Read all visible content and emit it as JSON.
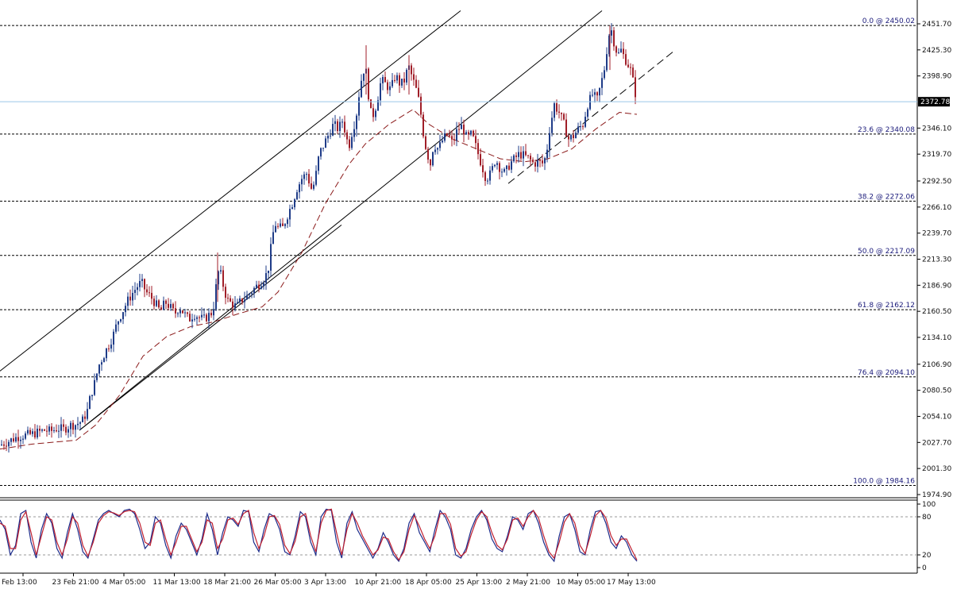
{
  "colors": {
    "background": "#ffffff",
    "bull_candle": "#1f3c88",
    "bear_candle": "#a01e28",
    "channel_line": "#000000",
    "fib_line": "#000000",
    "moving_average": "#8b1a1a",
    "current_price_line": "#9ac8e8",
    "stoch_main": "#1b2a8a",
    "stoch_signal": "#c02030",
    "axis": "#000000"
  },
  "chart_data": [
    {
      "type": "candlestick",
      "ylim": [
        1968.0,
        2458.0
      ],
      "y_ticks": [
        "2451.70",
        "2425.30",
        "2398.90",
        "2372.78",
        "2346.10",
        "2319.70",
        "2292.50",
        "2266.10",
        "2239.70",
        "2213.30",
        "2186.90",
        "2160.50",
        "2134.10",
        "2106.90",
        "2080.50",
        "2054.10",
        "2027.70",
        "2001.30",
        "1974.90"
      ],
      "x_ticks": [
        "Feb 13:00",
        "23 Feb 21:00",
        "4 Mar 05:00",
        "11 Mar 13:00",
        "18 Mar 21:00",
        "26 Mar 05:00",
        "3 Apr 13:00",
        "10 Apr 21:00",
        "18 Apr 05:00",
        "25 Apr 13:00",
        "2 May 21:00",
        "10 May 05:00",
        "17 May 13:00"
      ],
      "current_price": {
        "label": "2372.78",
        "value": 2372.78
      },
      "fibonacci_levels": [
        {
          "label": "0.0 @ 2450.02",
          "value": 2450.02
        },
        {
          "label": "23.6 @ 2340.08",
          "value": 2340.08
        },
        {
          "label": "38.2 @ 2272.06",
          "value": 2272.06
        },
        {
          "label": "50.0 @ 2217.09",
          "value": 2217.09
        },
        {
          "label": "61.8 @ 2162.12",
          "value": 2162.12
        },
        {
          "label": "76.4 @ 2094.10",
          "value": 2094.1
        },
        {
          "label": "100.0 @ 1984.16",
          "value": 1984.16
        }
      ],
      "close_path": [
        [
          0,
          2025
        ],
        [
          8,
          2028
        ],
        [
          16,
          2031
        ],
        [
          24,
          2034
        ],
        [
          32,
          2035
        ],
        [
          40,
          2036
        ],
        [
          48,
          2038
        ],
        [
          56,
          2040
        ],
        [
          64,
          2039
        ],
        [
          72,
          2042
        ],
        [
          80,
          2041
        ],
        [
          88,
          2045
        ],
        [
          96,
          2046
        ],
        [
          104,
          2050
        ],
        [
          110,
          2060
        ],
        [
          114,
          2075
        ],
        [
          120,
          2090
        ],
        [
          124,
          2105
        ],
        [
          130,
          2115
        ],
        [
          136,
          2125
        ],
        [
          142,
          2135
        ],
        [
          148,
          2150
        ],
        [
          154,
          2160
        ],
        [
          160,
          2170
        ],
        [
          166,
          2178
        ],
        [
          172,
          2185
        ],
        [
          178,
          2190
        ],
        [
          184,
          2180
        ],
        [
          190,
          2175
        ],
        [
          196,
          2168
        ],
        [
          202,
          2160
        ],
        [
          208,
          2170
        ],
        [
          214,
          2165
        ],
        [
          220,
          2158
        ],
        [
          226,
          2165
        ],
        [
          232,
          2158
        ],
        [
          238,
          2152
        ],
        [
          244,
          2158
        ],
        [
          250,
          2155
        ],
        [
          256,
          2152
        ],
        [
          262,
          2156
        ],
        [
          268,
          2160
        ],
        [
          272,
          2185
        ],
        [
          276,
          2205
        ],
        [
          280,
          2190
        ],
        [
          286,
          2172
        ],
        [
          292,
          2168
        ],
        [
          298,
          2165
        ],
        [
          304,
          2172
        ],
        [
          310,
          2175
        ],
        [
          316,
          2180
        ],
        [
          322,
          2185
        ],
        [
          328,
          2190
        ],
        [
          334,
          2195
        ],
        [
          338,
          2205
        ],
        [
          342,
          2230
        ],
        [
          346,
          2250
        ],
        [
          350,
          2245
        ],
        [
          356,
          2245
        ],
        [
          362,
          2258
        ],
        [
          368,
          2270
        ],
        [
          374,
          2285
        ],
        [
          380,
          2295
        ],
        [
          386,
          2300
        ],
        [
          392,
          2285
        ],
        [
          396,
          2290
        ],
        [
          402,
          2320
        ],
        [
          408,
          2330
        ],
        [
          414,
          2340
        ],
        [
          420,
          2350
        ],
        [
          426,
          2345
        ],
        [
          432,
          2355
        ],
        [
          436,
          2335
        ],
        [
          440,
          2330
        ],
        [
          444,
          2345
        ],
        [
          448,
          2355
        ],
        [
          452,
          2380
        ],
        [
          456,
          2400
        ],
        [
          460,
          2410
        ],
        [
          464,
          2380
        ],
        [
          468,
          2355
        ],
        [
          474,
          2370
        ],
        [
          480,
          2395
        ],
        [
          486,
          2390
        ],
        [
          492,
          2385
        ],
        [
          498,
          2400
        ],
        [
          504,
          2390
        ],
        [
          510,
          2395
        ],
        [
          514,
          2410
        ],
        [
          518,
          2400
        ],
        [
          522,
          2390
        ],
        [
          526,
          2380
        ],
        [
          530,
          2360
        ],
        [
          534,
          2335
        ],
        [
          538,
          2320
        ],
        [
          542,
          2310
        ],
        [
          546,
          2330
        ],
        [
          552,
          2325
        ],
        [
          558,
          2335
        ],
        [
          564,
          2340
        ],
        [
          570,
          2330
        ],
        [
          576,
          2345
        ],
        [
          582,
          2348
        ],
        [
          588,
          2335
        ],
        [
          594,
          2340
        ],
        [
          600,
          2325
        ],
        [
          606,
          2310
        ],
        [
          612,
          2295
        ],
        [
          618,
          2300
        ],
        [
          624,
          2315
        ],
        [
          630,
          2305
        ],
        [
          636,
          2300
        ],
        [
          642,
          2310
        ],
        [
          648,
          2315
        ],
        [
          654,
          2320
        ],
        [
          660,
          2318
        ],
        [
          666,
          2315
        ],
        [
          672,
          2310
        ],
        [
          678,
          2312
        ],
        [
          684,
          2310
        ],
        [
          688,
          2320
        ],
        [
          692,
          2345
        ],
        [
          698,
          2370
        ],
        [
          704,
          2362
        ],
        [
          710,
          2350
        ],
        [
          716,
          2335
        ],
        [
          722,
          2338
        ],
        [
          728,
          2345
        ],
        [
          734,
          2350
        ],
        [
          740,
          2370
        ],
        [
          746,
          2380
        ],
        [
          752,
          2375
        ],
        [
          758,
          2395
        ],
        [
          762,
          2410
        ],
        [
          766,
          2440
        ],
        [
          770,
          2445
        ],
        [
          774,
          2430
        ],
        [
          778,
          2420
        ],
        [
          782,
          2425
        ],
        [
          786,
          2418
        ],
        [
          790,
          2412
        ],
        [
          794,
          2405
        ],
        [
          798,
          2390
        ],
        [
          802,
          2372.78
        ]
      ],
      "moving_average_path": [
        [
          0,
          2021
        ],
        [
          40,
          2026
        ],
        [
          96,
          2030
        ],
        [
          120,
          2045
        ],
        [
          150,
          2075
        ],
        [
          180,
          2115
        ],
        [
          210,
          2135
        ],
        [
          240,
          2145
        ],
        [
          270,
          2150
        ],
        [
          300,
          2158
        ],
        [
          330,
          2165
        ],
        [
          350,
          2180
        ],
        [
          380,
          2220
        ],
        [
          410,
          2270
        ],
        [
          440,
          2310
        ],
        [
          460,
          2330
        ],
        [
          490,
          2350
        ],
        [
          520,
          2365
        ],
        [
          540,
          2350
        ],
        [
          570,
          2335
        ],
        [
          600,
          2325
        ],
        [
          630,
          2315
        ],
        [
          660,
          2312
        ],
        [
          690,
          2315
        ],
        [
          720,
          2325
        ],
        [
          750,
          2345
        ],
        [
          780,
          2362
        ],
        [
          802,
          2360
        ]
      ],
      "channel_lines": [
        {
          "p1": [
            0,
            2100
          ],
          "p2": [
            580,
            2465
          ],
          "style": "solid"
        },
        {
          "p1": [
            100,
            2040
          ],
          "p2": [
            758,
            2465
          ],
          "style": "solid"
        },
        {
          "p1": [
            640,
            2290
          ],
          "p2": [
            850,
            2425
          ],
          "style": "dash"
        }
      ]
    },
    {
      "type": "line",
      "series": [
        {
          "style": "stoch_main",
          "values": [
            75,
            60,
            20,
            35,
            85,
            90,
            40,
            15,
            60,
            85,
            70,
            30,
            15,
            55,
            85,
            60,
            25,
            15,
            45,
            75,
            85,
            90,
            85,
            80,
            90,
            92,
            85,
            60,
            30,
            40,
            80,
            70,
            35,
            15,
            50,
            70,
            60,
            40,
            20,
            45,
            85,
            60,
            20,
            55,
            80,
            75,
            65,
            90,
            88,
            40,
            25,
            60,
            85,
            80,
            60,
            25,
            20,
            50,
            88,
            80,
            40,
            20,
            80,
            92,
            90,
            40,
            15,
            70,
            88,
            60,
            45,
            30,
            15,
            30,
            55,
            40,
            20,
            10,
            30,
            70,
            85,
            55,
            40,
            25,
            60,
            90,
            80,
            60,
            20,
            15,
            30,
            60,
            80,
            90,
            75,
            45,
            30,
            25,
            50,
            80,
            75,
            60,
            85,
            90,
            70,
            40,
            20,
            10,
            50,
            80,
            85,
            60,
            25,
            20,
            60,
            88,
            90,
            70,
            40,
            30,
            50,
            40,
            20,
            10
          ]
        },
        {
          "style": "stoch_signal",
          "values": [
            70,
            65,
            30,
            30,
            75,
            88,
            55,
            20,
            50,
            80,
            75,
            40,
            20,
            45,
            80,
            70,
            35,
            18,
            40,
            70,
            82,
            88,
            86,
            82,
            88,
            90,
            88,
            70,
            40,
            35,
            70,
            75,
            45,
            20,
            40,
            65,
            65,
            45,
            25,
            40,
            75,
            70,
            30,
            45,
            75,
            78,
            68,
            85,
            90,
            55,
            30,
            50,
            80,
            82,
            68,
            35,
            22,
            42,
            80,
            85,
            50,
            25,
            70,
            90,
            92,
            55,
            20,
            60,
            85,
            70,
            50,
            35,
            20,
            28,
            48,
            45,
            25,
            12,
            25,
            60,
            82,
            65,
            45,
            30,
            50,
            85,
            85,
            68,
            30,
            18,
            25,
            52,
            75,
            88,
            80,
            55,
            35,
            28,
            45,
            75,
            78,
            65,
            80,
            90,
            78,
            50,
            25,
            15,
            40,
            72,
            85,
            70,
            35,
            22,
            50,
            82,
            90,
            78,
            50,
            35,
            45,
            45,
            28,
            12
          ]
        }
      ],
      "y_ticks": [
        "100",
        "80",
        "20",
        "0"
      ],
      "levels": [
        80,
        20
      ],
      "ylim": [
        0,
        100
      ]
    }
  ]
}
